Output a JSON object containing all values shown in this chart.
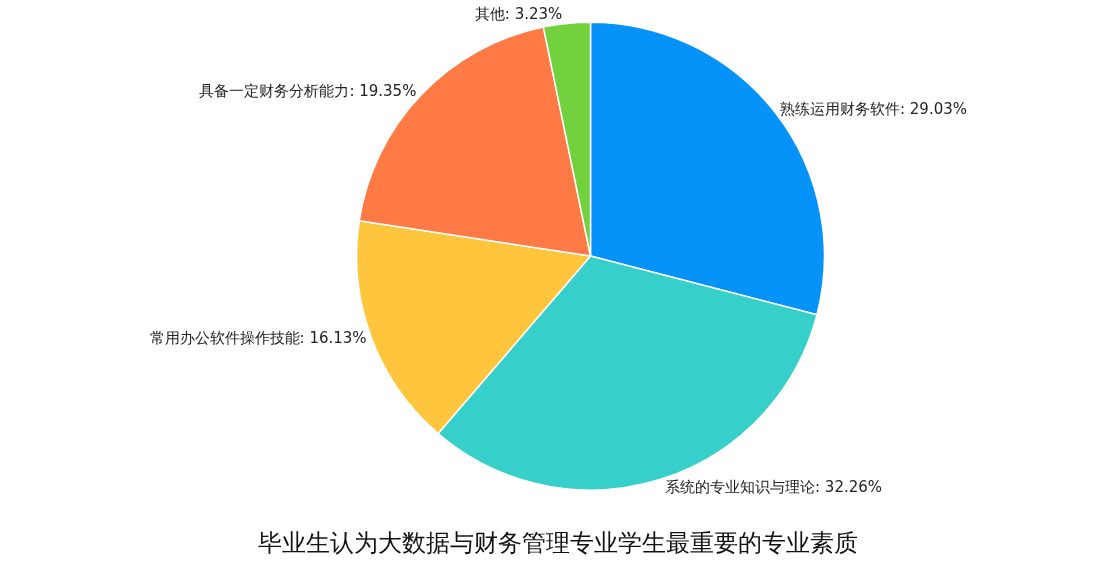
{
  "chart_data": {
    "type": "pie",
    "title": "毕业生认为大数据与财务管理专业学生最重要的专业素质",
    "categories": [
      "熟练运用财务软件",
      "系统的专业知识与理论",
      "常用办公软件操作技能",
      "具备一定财务分析能力",
      "其他"
    ],
    "values": [
      29.03,
      32.26,
      16.13,
      19.35,
      3.23
    ],
    "value_labels": [
      "29.03%",
      "32.26%",
      "16.13%",
      "19.35%",
      "3.23%"
    ],
    "colors": [
      "#0593fa",
      "#36cfc9",
      "#ffc53d",
      "#ff7a45",
      "#73d13d"
    ],
    "legend": false
  }
}
